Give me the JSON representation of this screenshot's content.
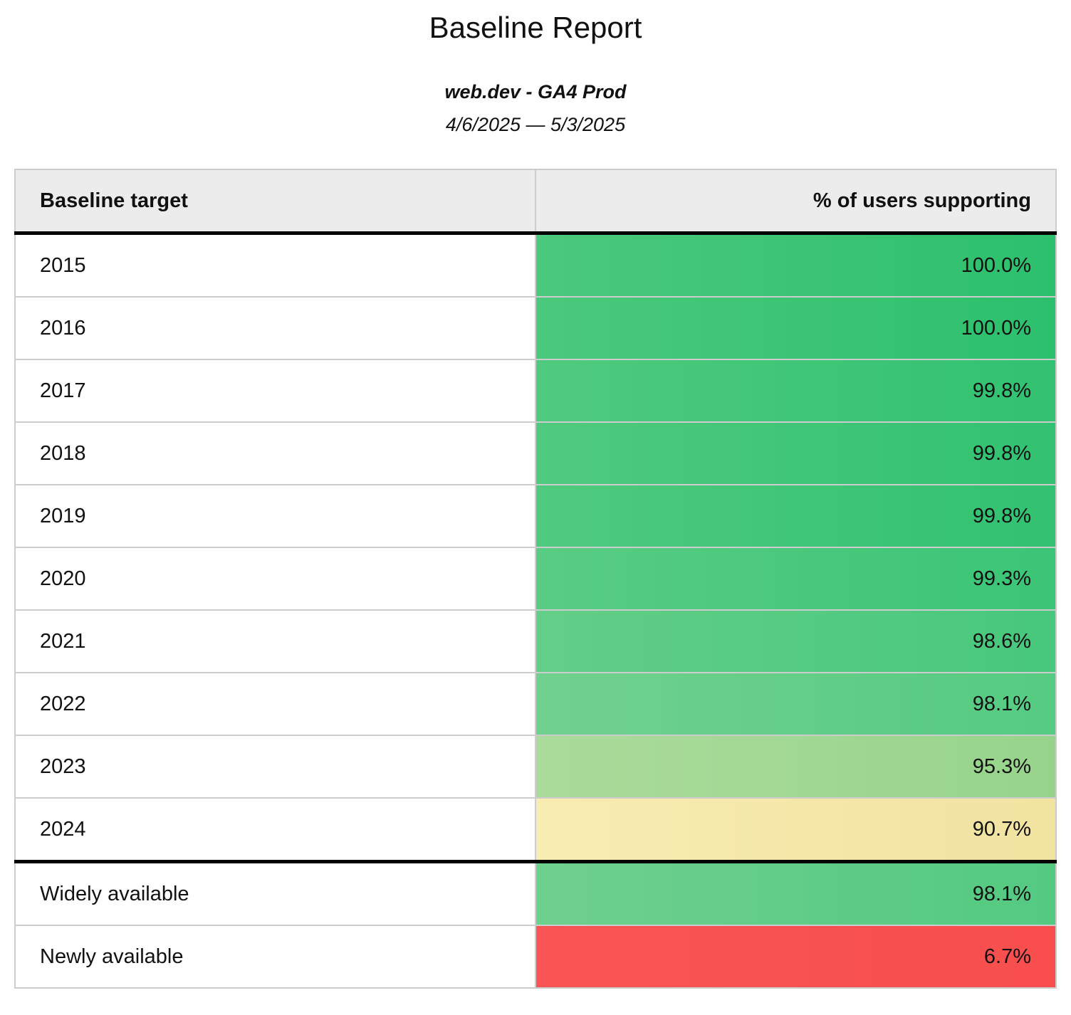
{
  "title": "Baseline Report",
  "subtitle": "web.dev - GA4 Prod",
  "date_range": "4/6/2025 — 5/3/2025",
  "table": {
    "columns": [
      "Baseline target",
      "% of users supporting"
    ],
    "rows": [
      {
        "target": "2015",
        "value": "100.0%",
        "bg_left": "#4bc97c",
        "bg_right": "#2cc06d",
        "divider_after": false
      },
      {
        "target": "2016",
        "value": "100.0%",
        "bg_left": "#4bc97c",
        "bg_right": "#2cc06d",
        "divider_after": false
      },
      {
        "target": "2017",
        "value": "99.8%",
        "bg_left": "#4fca7e",
        "bg_right": "#31c271",
        "divider_after": false
      },
      {
        "target": "2018",
        "value": "99.8%",
        "bg_left": "#4fca7e",
        "bg_right": "#31c271",
        "divider_after": false
      },
      {
        "target": "2019",
        "value": "99.8%",
        "bg_left": "#4fca7e",
        "bg_right": "#31c271",
        "divider_after": false
      },
      {
        "target": "2020",
        "value": "99.3%",
        "bg_left": "#58cc83",
        "bg_right": "#3bc576",
        "divider_after": false
      },
      {
        "target": "2021",
        "value": "98.6%",
        "bg_left": "#63ce88",
        "bg_right": "#47c87c",
        "divider_after": false
      },
      {
        "target": "2022",
        "value": "98.1%",
        "bg_left": "#70d18e",
        "bg_right": "#55cb82",
        "divider_after": false
      },
      {
        "target": "2023",
        "value": "95.3%",
        "bg_left": "#abdb9b",
        "bg_right": "#97d48b",
        "divider_after": false
      },
      {
        "target": "2024",
        "value": "90.7%",
        "bg_left": "#f8ecb2",
        "bg_right": "#f1e3a0",
        "divider_after": true
      },
      {
        "target": "Widely available",
        "value": "98.1%",
        "bg_left": "#6ed08d",
        "bg_right": "#54ca81",
        "divider_after": false
      },
      {
        "target": "Newly available",
        "value": "6.7%",
        "bg_left": "#f95555",
        "bg_right": "#f84e4e",
        "divider_after": false
      }
    ]
  },
  "colors": {
    "header_bg": "#ececec",
    "grid_line": "#cccccc",
    "divider": "#000000",
    "text": "#111111"
  },
  "chart_data": {
    "type": "table",
    "title": "Baseline Report",
    "subtitle": "web.dev - GA4 Prod",
    "date_range": "4/6/2025 — 5/3/2025",
    "columns": [
      "Baseline target",
      "% of users supporting"
    ],
    "rows": [
      [
        "2015",
        100.0
      ],
      [
        "2016",
        100.0
      ],
      [
        "2017",
        99.8
      ],
      [
        "2018",
        99.8
      ],
      [
        "2019",
        99.8
      ],
      [
        "2020",
        99.3
      ],
      [
        "2021",
        98.6
      ],
      [
        "2022",
        98.1
      ],
      [
        "2023",
        95.3
      ],
      [
        "2024",
        90.7
      ],
      [
        "Widely available",
        98.1
      ],
      [
        "Newly available",
        6.7
      ]
    ],
    "value_unit": "%",
    "color_scale": "green-to-red heatmap on value column",
    "legend": "none",
    "grid": true
  }
}
